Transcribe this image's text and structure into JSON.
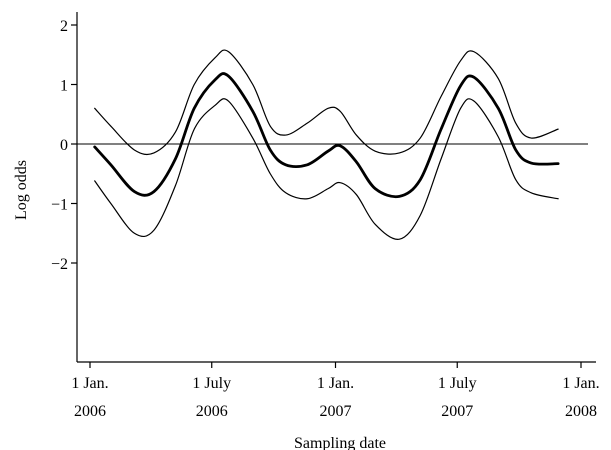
{
  "chart_data": {
    "type": "line",
    "xlabel": "Sampling date",
    "ylabel": "Log odds",
    "xlim": [
      "2006-01-01",
      "2008-01-01"
    ],
    "ylim": [
      -3.6,
      2.1
    ],
    "yticks": [
      {
        "value": 2,
        "label": "2"
      },
      {
        "value": 1,
        "label": "1"
      },
      {
        "value": 0,
        "label": "0"
      },
      {
        "value": -1,
        "label": "−1"
      },
      {
        "value": -2,
        "label": "−2"
      }
    ],
    "xticks": [
      {
        "date": "2006-01-01",
        "line1": "1 Jan.",
        "line2": "2006"
      },
      {
        "date": "2006-07-01",
        "line1": "1 July",
        "line2": "2006"
      },
      {
        "date": "2007-01-01",
        "line1": "1 Jan.",
        "line2": "2007"
      },
      {
        "date": "2007-07-01",
        "line1": "1 July",
        "line2": "2007"
      },
      {
        "date": "2008-01-01",
        "line1": "1 Jan.",
        "line2": "2008"
      }
    ],
    "reference_line": {
      "y": 0
    },
    "series": [
      {
        "role": "estimate",
        "color": "#000000",
        "x": [
          "2006-01-08",
          "2006-02-01",
          "2006-03-08",
          "2006-04-06",
          "2006-05-08",
          "2006-06-05",
          "2006-07-06",
          "2006-07-26",
          "2006-08-31",
          "2006-09-26",
          "2006-10-19",
          "2006-11-20",
          "2006-12-21",
          "2007-01-08",
          "2007-02-01",
          "2007-03-01",
          "2007-04-06",
          "2007-05-07",
          "2007-06-07",
          "2007-07-06",
          "2007-07-26",
          "2007-08-31",
          "2007-09-26",
          "2007-10-19",
          "2007-11-28"
        ],
        "y": [
          -0.05,
          -0.35,
          -0.8,
          -0.8,
          -0.25,
          0.6,
          1.08,
          1.14,
          0.55,
          -0.1,
          -0.35,
          -0.35,
          -0.12,
          -0.03,
          -0.3,
          -0.75,
          -0.88,
          -0.6,
          0.25,
          0.98,
          1.12,
          0.6,
          -0.1,
          -0.32,
          -0.33
        ]
      },
      {
        "role": "upper-bound",
        "color": "#000000",
        "x": [
          "2006-01-08",
          "2006-02-01",
          "2006-03-08",
          "2006-04-06",
          "2006-05-08",
          "2006-06-05",
          "2006-07-06",
          "2006-07-26",
          "2006-08-31",
          "2006-09-26",
          "2006-10-19",
          "2006-11-20",
          "2006-12-21",
          "2007-01-08",
          "2007-02-01",
          "2007-03-01",
          "2007-04-06",
          "2007-05-07",
          "2007-06-07",
          "2007-07-06",
          "2007-07-26",
          "2007-08-31",
          "2007-09-26",
          "2007-10-19",
          "2007-11-28"
        ],
        "y": [
          0.6,
          0.3,
          -0.1,
          -0.15,
          0.2,
          1.0,
          1.45,
          1.55,
          1.0,
          0.3,
          0.15,
          0.35,
          0.6,
          0.55,
          0.15,
          -0.12,
          -0.15,
          0.1,
          0.8,
          1.4,
          1.55,
          1.1,
          0.35,
          0.1,
          0.25
        ]
      },
      {
        "role": "lower-bound",
        "color": "#000000",
        "x": [
          "2006-01-08",
          "2006-02-01",
          "2006-03-08",
          "2006-04-06",
          "2006-05-08",
          "2006-06-05",
          "2006-07-06",
          "2006-07-26",
          "2006-08-31",
          "2006-09-26",
          "2006-10-19",
          "2006-11-20",
          "2006-12-21",
          "2007-01-08",
          "2007-02-01",
          "2007-03-01",
          "2007-04-06",
          "2007-05-07",
          "2007-06-07",
          "2007-07-06",
          "2007-07-26",
          "2007-08-31",
          "2007-09-26",
          "2007-10-19",
          "2007-11-28"
        ],
        "y": [
          -0.62,
          -1.0,
          -1.5,
          -1.45,
          -0.7,
          0.25,
          0.65,
          0.72,
          0.1,
          -0.5,
          -0.82,
          -0.92,
          -0.75,
          -0.65,
          -0.85,
          -1.35,
          -1.6,
          -1.2,
          -0.25,
          0.6,
          0.72,
          0.12,
          -0.6,
          -0.82,
          -0.92
        ]
      }
    ]
  }
}
